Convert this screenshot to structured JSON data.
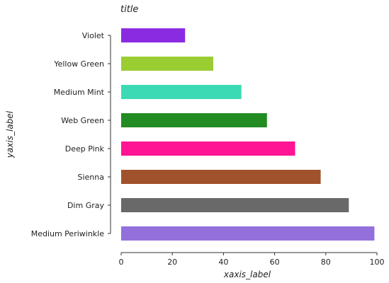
{
  "chart_data": {
    "type": "bar",
    "orientation": "horizontal",
    "title": "title",
    "xlabel": "xaxis_label",
    "ylabel": "yaxis_label",
    "xlim": [
      0,
      100
    ],
    "xticks": [
      "0",
      "20",
      "40",
      "60",
      "80",
      "100"
    ],
    "categories": [
      "Violet",
      "Yellow Green",
      "Medium Mint",
      "Web Green",
      "Deep Pink",
      "Sienna",
      "Dim Gray",
      "Medium Periwinkle"
    ],
    "values": [
      25,
      36,
      47,
      57,
      68,
      78,
      89,
      99
    ],
    "colors": [
      "#8a2be2",
      "#9acd32",
      "#3cd9b5",
      "#228b22",
      "#ff1493",
      "#a0522d",
      "#696969",
      "#9370db"
    ],
    "grid": false,
    "legend": "none"
  }
}
